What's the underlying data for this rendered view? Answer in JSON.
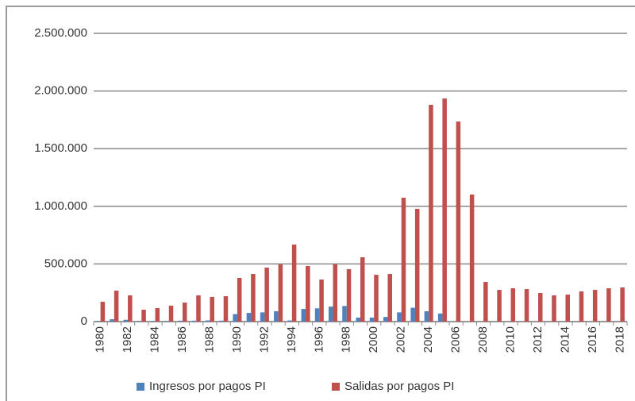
{
  "chart_data": {
    "type": "bar",
    "categories": [
      "1980",
      null,
      "1982",
      null,
      "1984",
      null,
      "1986",
      null,
      "1988",
      null,
      "1990",
      null,
      "1992",
      null,
      "1994",
      null,
      "1996",
      null,
      "1998",
      null,
      "2000",
      null,
      "2002",
      null,
      "2004",
      null,
      "2006",
      null,
      "2008",
      null,
      "2010",
      null,
      "2012",
      null,
      "2014",
      null,
      "2016",
      null,
      "2018"
    ],
    "series": [
      {
        "name": "Ingresos por pagos PI",
        "color": "#4f81bd",
        "values": [
          5000,
          20000,
          15000,
          5000,
          5000,
          5000,
          8000,
          8000,
          10000,
          8000,
          65000,
          75000,
          80000,
          90000,
          10000,
          110000,
          115000,
          130000,
          135000,
          35000,
          35000,
          40000,
          80000,
          120000,
          90000,
          70000,
          0,
          0,
          0,
          0,
          0,
          0,
          0,
          0,
          0,
          0,
          0,
          0,
          0
        ]
      },
      {
        "name": "Salidas por pagos PI",
        "color": "#c0504d",
        "values": [
          172000,
          269000,
          228000,
          103000,
          117000,
          138000,
          165000,
          228000,
          214000,
          220000,
          379000,
          413000,
          468000,
          496000,
          668000,
          482000,
          365000,
          496000,
          455000,
          558000,
          406000,
          413000,
          1074000,
          978000,
          1880000,
          1935000,
          1735000,
          1102000,
          344000,
          275000,
          289000,
          282000,
          248000,
          228000,
          234000,
          262000,
          275000,
          289000,
          296000
        ]
      }
    ],
    "ylim": [
      0,
      2500000
    ],
    "yticks": [
      0,
      {
        "value": 500000,
        "label": "500.000"
      },
      {
        "value": 1000000,
        "label": "1.000.000"
      },
      {
        "value": 1500000,
        "label": "1.500.000"
      },
      {
        "value": 2000000,
        "label": "2.000.000"
      },
      {
        "value": 2500000,
        "label": "2.500.000"
      }
    ],
    "grid": true,
    "legend": "bottom"
  }
}
